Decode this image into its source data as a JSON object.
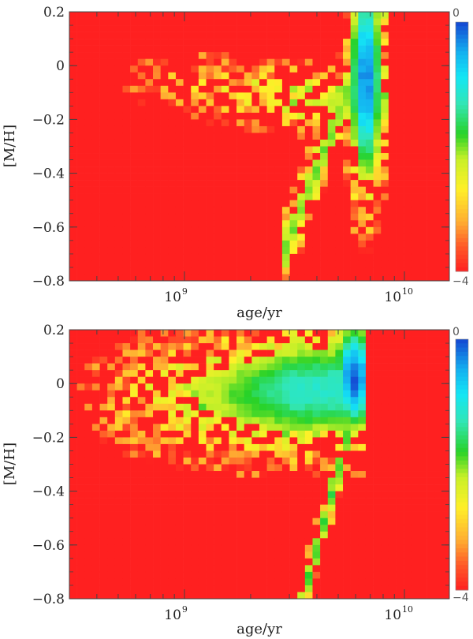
{
  "chart_data": [
    {
      "type": "heatmap",
      "xlabel": "age/yr",
      "ylabel": "[M/H]",
      "x_scale": "log",
      "xlim": [
        300000000,
        16000000000
      ],
      "ylim": [
        -0.8,
        0.2
      ],
      "x_ticks": [
        {
          "value": 1000000000,
          "base": "10",
          "exp": "9"
        },
        {
          "value": 10000000000,
          "base": "10",
          "exp": "10"
        }
      ],
      "y_ticks": [
        {
          "value": 0.2,
          "label": "0.2"
        },
        {
          "value": 0,
          "label": "0"
        },
        {
          "value": -0.2,
          "label": "−0.2"
        },
        {
          "value": -0.4,
          "label": "−0.4"
        },
        {
          "value": -0.6,
          "label": "−0.6"
        },
        {
          "value": -0.8,
          "label": "−0.8"
        }
      ],
      "colorbar": {
        "min": -4,
        "max": 0,
        "min_label": "−4",
        "max_label": "0"
      },
      "color_scale": "log10 density; blue = 0 (peak), cyan, green, yellow, orange, red = −4",
      "peak": {
        "age_yr": 6500000000,
        "mh": -0.05,
        "value": 0
      },
      "max_age_yr": 11000000000
    },
    {
      "type": "heatmap",
      "xlabel": "age/yr",
      "ylabel": "[M/H]",
      "x_scale": "log",
      "xlim": [
        300000000,
        16000000000
      ],
      "ylim": [
        -0.8,
        0.2
      ],
      "x_ticks": [
        {
          "value": 1000000000,
          "base": "10",
          "exp": "9"
        },
        {
          "value": 10000000000,
          "base": "10",
          "exp": "10"
        }
      ],
      "y_ticks": [
        {
          "value": 0.2,
          "label": "0.2"
        },
        {
          "value": 0,
          "label": "0"
        },
        {
          "value": -0.2,
          "label": "−0.2"
        },
        {
          "value": -0.4,
          "label": "−0.4"
        },
        {
          "value": -0.6,
          "label": "−0.6"
        },
        {
          "value": -0.8,
          "label": "−0.8"
        }
      ],
      "colorbar": {
        "min": -4,
        "max": 0,
        "min_label": "−4",
        "max_label": "0"
      },
      "color_scale": "log10 density; blue = 0 (peak), cyan, green, yellow, orange, red = −4",
      "peak": {
        "age_yr": 6000000000,
        "mh": 0.02,
        "value": 0
      },
      "max_age_yr": 8000000000
    }
  ]
}
